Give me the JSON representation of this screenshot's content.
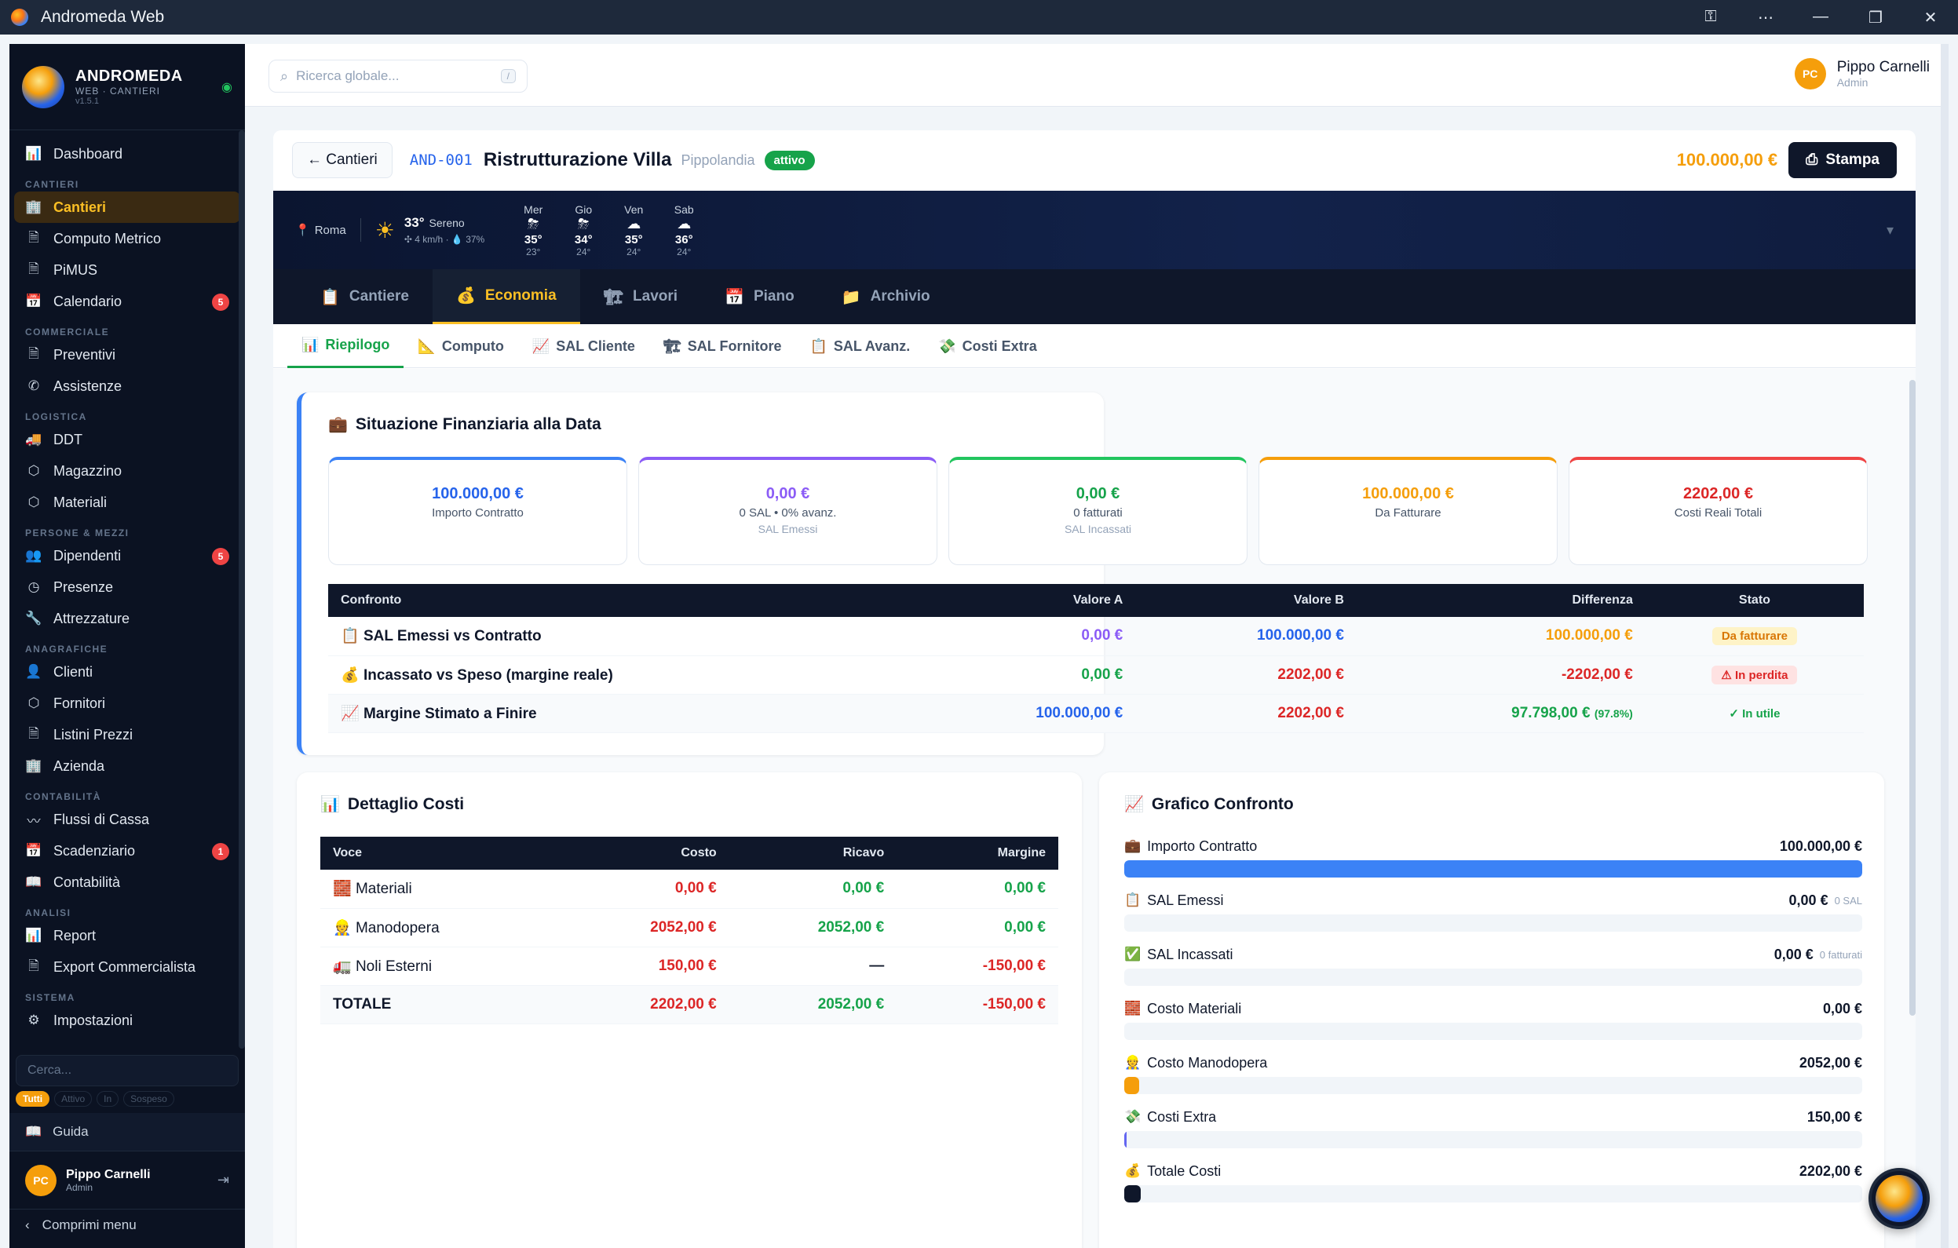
{
  "window": {
    "title": "Andromeda Web"
  },
  "brand": {
    "name": "ANDROMEDA",
    "sub": "WEB · CANTIERI",
    "version": "v1.5.1"
  },
  "sidebar": {
    "items": [
      {
        "label": "Dashboard",
        "icon": "chart-icon"
      },
      {
        "section": "CANTIERI"
      },
      {
        "label": "Cantieri",
        "icon": "building-icon",
        "active": true
      },
      {
        "label": "Computo Metrico",
        "icon": "document-icon"
      },
      {
        "label": "PiMUS",
        "icon": "document-icon"
      },
      {
        "label": "Calendario",
        "icon": "calendar-icon",
        "badge": "5"
      },
      {
        "section": "COMMERCIALE"
      },
      {
        "label": "Preventivi",
        "icon": "document-icon"
      },
      {
        "label": "Assistenze",
        "icon": "phone-icon"
      },
      {
        "section": "LOGISTICA"
      },
      {
        "label": "DDT",
        "icon": "truck-icon"
      },
      {
        "label": "Magazzino",
        "icon": "box-icon"
      },
      {
        "label": "Materiali",
        "icon": "box-icon"
      },
      {
        "section": "PERSONE & MEZZI"
      },
      {
        "label": "Dipendenti",
        "icon": "users-icon",
        "badge": "5"
      },
      {
        "label": "Presenze",
        "icon": "clock-icon"
      },
      {
        "label": "Attrezzature",
        "icon": "wrench-icon"
      },
      {
        "section": "ANAGRAFICHE"
      },
      {
        "label": "Clienti",
        "icon": "user-icon"
      },
      {
        "label": "Fornitori",
        "icon": "box-icon"
      },
      {
        "label": "Listini Prezzi",
        "icon": "document-icon"
      },
      {
        "label": "Azienda",
        "icon": "building-icon"
      },
      {
        "section": "CONTABILITÀ"
      },
      {
        "label": "Flussi di Cassa",
        "icon": "trend-icon"
      },
      {
        "label": "Scadenziario",
        "icon": "calendar-icon",
        "badge": "1"
      },
      {
        "label": "Contabilità",
        "icon": "book-icon"
      },
      {
        "section": "ANALISI"
      },
      {
        "label": "Report",
        "icon": "chart-icon"
      },
      {
        "label": "Export Commercialista",
        "icon": "document-icon"
      },
      {
        "section": "SISTEMA"
      },
      {
        "label": "Impostazioni",
        "icon": "gear-icon"
      }
    ],
    "search_placeholder": "Cerca...",
    "filters": [
      "Tutti",
      "Attivo",
      "In",
      "Sospeso"
    ],
    "guide": "Guida",
    "user": {
      "initials": "PC",
      "name": "Pippo Carnelli",
      "role": "Admin"
    },
    "collapse": "Comprimi menu"
  },
  "topbar": {
    "search_placeholder": "Ricerca globale...",
    "shortcut": "/",
    "user": {
      "initials": "PC",
      "name": "Pippo Carnelli",
      "role": "Admin"
    }
  },
  "project": {
    "back": "← Cantieri",
    "code": "AND-001",
    "title": "Ristrutturazione Villa",
    "location": "Pippolandia",
    "status": "attivo",
    "amount": "100.000,00 €",
    "print": "Stampa"
  },
  "weather": {
    "city": "Roma",
    "temp": "33°",
    "desc": "Sereno",
    "wind": "4 km/h",
    "humidity": "37%",
    "forecast": [
      {
        "day": "Mer",
        "icon": "storm",
        "max": "35°",
        "min": "23°"
      },
      {
        "day": "Gio",
        "icon": "storm",
        "max": "34°",
        "min": "24°"
      },
      {
        "day": "Ven",
        "icon": "cloud",
        "max": "35°",
        "min": "24°"
      },
      {
        "day": "Sab",
        "icon": "cloud",
        "max": "36°",
        "min": "24°"
      }
    ]
  },
  "tabs": [
    {
      "label": "Cantiere",
      "icon": "📋"
    },
    {
      "label": "Economia",
      "icon": "💰",
      "active": true
    },
    {
      "label": "Lavori",
      "icon": "🏗"
    },
    {
      "label": "Piano",
      "icon": "📅"
    },
    {
      "label": "Archivio",
      "icon": "📁"
    }
  ],
  "subtabs": [
    {
      "label": "Riepilogo",
      "icon": "📊",
      "active": true
    },
    {
      "label": "Computo",
      "icon": "📐"
    },
    {
      "label": "SAL Cliente",
      "icon": "📈"
    },
    {
      "label": "SAL Fornitore",
      "icon": "🏗"
    },
    {
      "label": "SAL Avanz.",
      "icon": "📋"
    },
    {
      "label": "Costi Extra",
      "icon": "💸"
    }
  ],
  "fin": {
    "title": "Situazione Finanziaria alla Data",
    "kpis": [
      {
        "value": "100.000,00 €",
        "l1": "Importo Contratto",
        "l2": "",
        "color": "#2563eb",
        "top": "#3b82f6"
      },
      {
        "value": "0,00 €",
        "l1": "0 SAL • 0% avanz.",
        "l2": "SAL Emessi",
        "color": "#8b5cf6",
        "top": "#8b5cf6"
      },
      {
        "value": "0,00 €",
        "l1": "0 fatturati",
        "l2": "SAL Incassati",
        "color": "#16a34a",
        "top": "#22c55e"
      },
      {
        "value": "100.000,00 €",
        "l1": "Da Fatturare",
        "l2": "",
        "color": "#f59e0b",
        "top": "#f59e0b"
      },
      {
        "value": "2202,00 €",
        "l1": "Costi Reali Totali",
        "l2": "",
        "color": "#dc2626",
        "top": "#ef4444"
      }
    ],
    "headers": [
      "Confronto",
      "Valore A",
      "Valore B",
      "Differenza",
      "Stato"
    ],
    "rows": [
      {
        "icon": "📋",
        "label": "SAL Emessi vs Contratto",
        "a": "0,00 €",
        "b": "100.000,00 €",
        "diff": "100.000,00 €",
        "pct": "",
        "status": "Da fatturare",
        "a_c": "purple",
        "b_c": "blue",
        "d_c": "orange",
        "s_c": "warn"
      },
      {
        "icon": "💰",
        "label": "Incassato vs Speso (margine reale)",
        "a": "0,00 €",
        "b": "2202,00 €",
        "diff": "-2202,00 €",
        "pct": "",
        "status": "⚠ In perdita",
        "a_c": "green",
        "b_c": "red",
        "d_c": "red",
        "s_c": "bad"
      },
      {
        "icon": "📈",
        "label": "Margine Stimato a Finire",
        "a": "100.000,00 €",
        "b": "2202,00 €",
        "diff": "97.798,00 €",
        "pct": "(97.8%)",
        "status": "✓ In utile",
        "a_c": "blue",
        "b_c": "red",
        "d_c": "green",
        "s_c": "ok"
      }
    ]
  },
  "costs": {
    "title": "Dettaglio Costi",
    "headers": [
      "Voce",
      "Costo",
      "Ricavo",
      "Margine"
    ],
    "rows": [
      {
        "icon": "🧱",
        "label": "Materiali",
        "cost": "0,00 €",
        "rev": "0,00 €",
        "margin": "0,00 €",
        "m_c": "green"
      },
      {
        "icon": "👷",
        "label": "Manodopera",
        "cost": "2052,00 €",
        "rev": "2052,00 €",
        "margin": "0,00 €",
        "m_c": "green"
      },
      {
        "icon": "🚛",
        "label": "Noli Esterni",
        "cost": "150,00 €",
        "rev": "—",
        "margin": "-150,00 €",
        "m_c": "red"
      }
    ],
    "total": {
      "label": "TOTALE",
      "cost": "2202,00 €",
      "rev": "2052,00 €",
      "margin": "-150,00 €"
    }
  },
  "chart": {
    "title": "Grafico Confronto",
    "bars": [
      {
        "icon": "💼",
        "label": "Importo Contratto",
        "value": "100.000,00 €",
        "note": "",
        "fraction": 1.0,
        "color": "#3b82f6"
      },
      {
        "icon": "📋",
        "label": "SAL Emessi",
        "value": "0,00 €",
        "note": "0 SAL",
        "fraction": 0,
        "color": "#8b5cf6"
      },
      {
        "icon": "✅",
        "label": "SAL Incassati",
        "value": "0,00 €",
        "note": "0 fatturati",
        "fraction": 0,
        "color": "#22c55e"
      },
      {
        "icon": "🧱",
        "label": "Costo Materiali",
        "value": "0,00 €",
        "note": "",
        "fraction": 0,
        "color": "#ef4444"
      },
      {
        "icon": "👷",
        "label": "Costo Manodopera",
        "value": "2052,00 €",
        "note": "",
        "fraction": 0.0205,
        "color": "#f59e0b"
      },
      {
        "icon": "💸",
        "label": "Costi Extra",
        "value": "150,00 €",
        "note": "",
        "fraction": 0.0015,
        "color": "#6366f1"
      },
      {
        "icon": "💰",
        "label": "Totale Costi",
        "value": "2202,00 €",
        "note": "",
        "fraction": 0.022,
        "color": "#0f172a"
      }
    ]
  }
}
